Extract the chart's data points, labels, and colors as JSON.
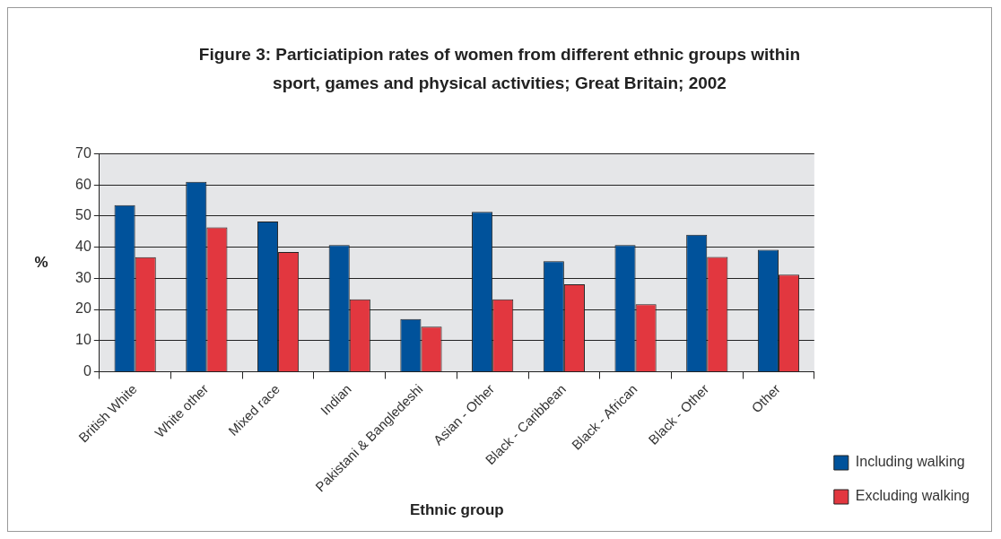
{
  "chart_data": {
    "type": "bar",
    "title": "Figure 3: Particiatipion rates of women from different ethnic groups within sport, games and physical activities; Great Britain; 2002",
    "xlabel": "Ethnic group",
    "ylabel": "%",
    "categories": [
      "British White",
      "White other",
      "Mixed race",
      "Indian",
      "Pakistani & Bangledeshi",
      "Asian - Other",
      "Black - Caribbean",
      "Black - African",
      "Black - Other",
      "Other"
    ],
    "series": [
      {
        "name": "Including walking",
        "color": "#00529b",
        "values": [
          53.5,
          61,
          48.3,
          40.7,
          16.9,
          51.4,
          35.5,
          40.7,
          44,
          39.2
        ]
      },
      {
        "name": "Excluding walking",
        "color": "#e2373f",
        "values": [
          36.8,
          46.4,
          38.5,
          23.3,
          14.5,
          23.3,
          28.1,
          21.7,
          36.9,
          31.2
        ]
      }
    ],
    "ylim": [
      0,
      70
    ],
    "yticks": [
      0,
      10,
      20,
      30,
      40,
      50,
      60,
      70
    ],
    "grid": "y",
    "legend": "bottom right"
  }
}
